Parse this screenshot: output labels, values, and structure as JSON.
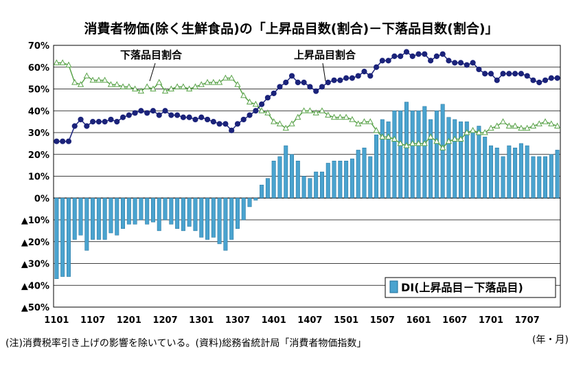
{
  "chart_data": {
    "type": "bar",
    "title": "消費者物価(除く生鮮食品)の「上昇品目数(割合)－下落品目数(割合)」",
    "x_tick_labels": [
      "1101",
      "1107",
      "1201",
      "1207",
      "1301",
      "1307",
      "1401",
      "1407",
      "1501",
      "1507",
      "1601",
      "1607",
      "1701",
      "1707"
    ],
    "x_unit": "(年・月)",
    "ylim": [
      -50,
      70
    ],
    "y_ticks": [
      {
        "value": 70,
        "label": "70%"
      },
      {
        "value": 60,
        "label": "60%"
      },
      {
        "value": 50,
        "label": "50%"
      },
      {
        "value": 40,
        "label": "40%"
      },
      {
        "value": 30,
        "label": "30%"
      },
      {
        "value": 20,
        "label": "20%"
      },
      {
        "value": 10,
        "label": "10%"
      },
      {
        "value": 0,
        "label": "0%"
      },
      {
        "value": -10,
        "label": "▲10%"
      },
      {
        "value": -20,
        "label": "▲20%"
      },
      {
        "value": -30,
        "label": "▲30%"
      },
      {
        "value": -40,
        "label": "▲40%"
      },
      {
        "value": -50,
        "label": "▲50%"
      }
    ],
    "grid": true,
    "legend_position": "bottom-right",
    "annotations": {
      "falling": "下落品目割合",
      "rising": "上昇品目割合"
    },
    "footnote": "(注)消費税率引き上げの影響を除いている。(資料)総務省統計局「消費者物価指数」",
    "colors": {
      "bar": "#4aa3cf",
      "bar_edge": "#1f6f99",
      "rising": "#1b237a",
      "falling": "#5aa34a"
    },
    "series": [
      {
        "name": "DI(上昇品目－下落品目)",
        "type": "bar",
        "values": [
          -37,
          -36,
          -36,
          -19,
          -17,
          -24,
          -19,
          -19,
          -19,
          -16,
          -17,
          -14,
          -12,
          -12,
          -10,
          -12,
          -11,
          -15,
          -10,
          -12,
          -14,
          -15,
          -13,
          -15,
          -18,
          -19,
          -18,
          -21,
          -24,
          -19,
          -14,
          -10,
          -4,
          -1,
          6,
          9,
          17,
          19,
          24,
          20,
          17,
          10,
          9,
          12,
          12,
          16,
          17,
          17,
          17,
          18,
          22,
          23,
          19,
          29,
          36,
          35,
          40,
          40,
          44,
          40,
          40,
          42,
          36,
          40,
          43,
          37,
          36,
          35,
          35,
          30,
          33,
          28,
          24,
          23,
          19,
          24,
          23,
          25,
          24,
          19,
          19,
          19,
          20,
          22
        ]
      },
      {
        "name": "上昇品目割合",
        "type": "line",
        "values": [
          26,
          26,
          26,
          33,
          36,
          33,
          35,
          35,
          35,
          36,
          35,
          37,
          38,
          39,
          40,
          39,
          40,
          38,
          40,
          38,
          38,
          37,
          37,
          36,
          37,
          36,
          35,
          34,
          34,
          31,
          34,
          36,
          38,
          40,
          43,
          46,
          48,
          51,
          53,
          56,
          53,
          53,
          51,
          49,
          51,
          53,
          54,
          54,
          55,
          55,
          56,
          58,
          56,
          60,
          63,
          63,
          65,
          65,
          67,
          65,
          66,
          66,
          63,
          65,
          66,
          63,
          62,
          62,
          61,
          62,
          59,
          57,
          57,
          54,
          57,
          57,
          57,
          57,
          56,
          54,
          53,
          54,
          55,
          55
        ]
      },
      {
        "name": "下落品目割合",
        "type": "line",
        "values": [
          62,
          62,
          61,
          53,
          52,
          56,
          54,
          54,
          54,
          52,
          52,
          51,
          51,
          50,
          49,
          51,
          50,
          53,
          49,
          50,
          51,
          51,
          50,
          51,
          52,
          53,
          53,
          53,
          55,
          55,
          52,
          47,
          44,
          43,
          40,
          39,
          35,
          34,
          32,
          34,
          37,
          40,
          40,
          39,
          40,
          38,
          37,
          37,
          37,
          36,
          34,
          35,
          35,
          31,
          28,
          28,
          27,
          25,
          24,
          25,
          25,
          25,
          28,
          26,
          23,
          26,
          27,
          27,
          30,
          31,
          30,
          30,
          32,
          33,
          35,
          33,
          33,
          32,
          32,
          33,
          34,
          35,
          34,
          33
        ]
      }
    ]
  }
}
